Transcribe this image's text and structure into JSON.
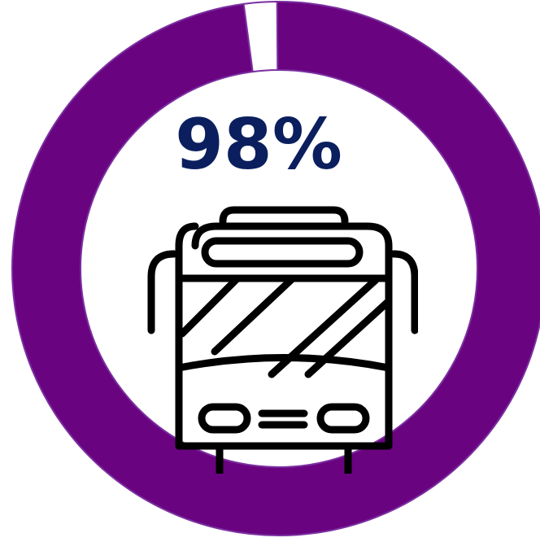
{
  "chart_data": {
    "type": "pie",
    "subtype": "donut",
    "value_percent": 98,
    "remaining_percent": 2,
    "label": "98%",
    "colors": {
      "fill": "#6a0380",
      "remaining": "#ffffff",
      "label": "#0b1f5e",
      "icon": "#000000"
    },
    "icon": "bus-icon"
  }
}
